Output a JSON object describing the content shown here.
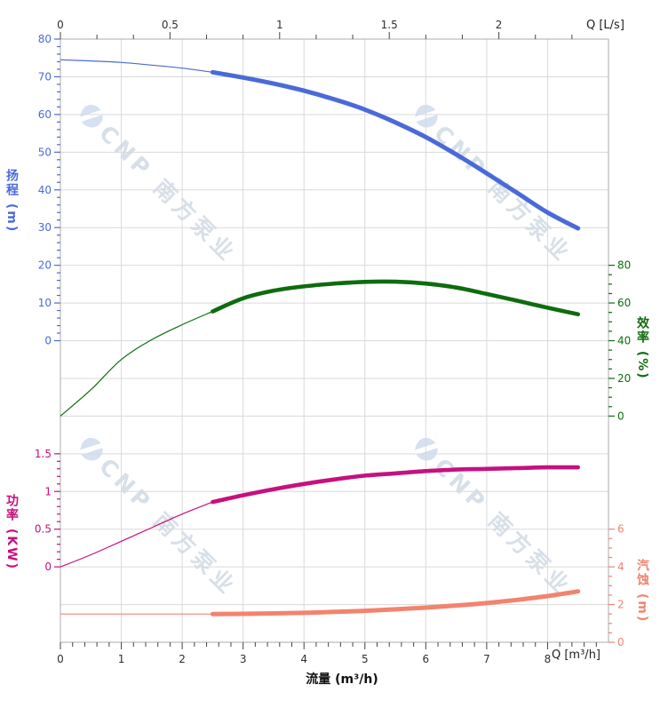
{
  "labels": {
    "flow_axis": "流量 (m³/h)",
    "top_unit": "Q [L/s]",
    "bottom_unit": "Q [m³/h]",
    "head_axis": "扬程 (m)",
    "efficiency_axis": "效率 (%)",
    "power_axis": "功率 (KW)",
    "npsh_axis": "汽蚀 (m)"
  },
  "watermark": {
    "text": "CNP 南方泵业"
  },
  "colors": {
    "head": "#4a6ad9",
    "efficiency": "#0e6c0e",
    "power": "#c6107f",
    "npsh": "#f2836e",
    "grid": "#d9d9d9",
    "border": "#ababab",
    "black_text": "#2f2f2f"
  },
  "chart_data": {
    "type": "line",
    "title": "",
    "x_label": "流量 (m³/h)",
    "x_unit_bottom": "Q [m³/h]",
    "x_unit_top": "Q [L/s]",
    "x_axis_bottom": {
      "ticks": [
        0,
        1,
        2,
        3,
        4,
        5,
        6,
        7,
        8
      ],
      "range": [
        0,
        9
      ],
      "minor_divisions": 5
    },
    "x_axis_top": {
      "ticks": [
        0,
        0.5,
        1,
        1.5,
        2
      ],
      "range": [
        0,
        2.5
      ],
      "minor_divisions": 3,
      "m3h_per_ls": 3.6
    },
    "x_m3h": [
      0,
      0.5,
      1,
      1.5,
      2,
      2.5,
      3,
      3.5,
      4,
      4.5,
      5,
      5.5,
      6,
      6.5,
      7,
      7.5,
      8,
      8.5
    ],
    "highlight_from_x": 2.5,
    "grid": true,
    "legend": "none",
    "series": [
      {
        "key": "head",
        "name": "扬程",
        "unit": "m",
        "color": "#4a6ad9",
        "axis_ticks": [
          0,
          10,
          20,
          30,
          40,
          50,
          60,
          70,
          80
        ],
        "minor_divisions": 5,
        "axis_side": "left",
        "values": [
          74.5,
          74.2,
          73.8,
          73.1,
          72.3,
          71.2,
          69.8,
          68.2,
          66.3,
          64.0,
          61.3,
          57.9,
          54.0,
          49.4,
          44.4,
          39.2,
          34.0,
          29.8
        ]
      },
      {
        "key": "efficiency",
        "name": "效率",
        "unit": "%",
        "color": "#0e6c0e",
        "axis_ticks": [
          0,
          20,
          40,
          60,
          80
        ],
        "minor_divisions": 4,
        "axis_side": "right",
        "values": [
          0,
          14,
          30,
          40.5,
          48.5,
          55.5,
          62.5,
          66.5,
          68.8,
          70.3,
          71.2,
          71.3,
          70.3,
          68.2,
          64.8,
          61.2,
          57.5,
          54.0
        ]
      },
      {
        "key": "power",
        "name": "功率",
        "unit": "KW",
        "color": "#c6107f",
        "axis_ticks": [
          0,
          0.5,
          1,
          1.5
        ],
        "minor_divisions": 5,
        "axis_side": "left",
        "values": [
          0,
          0.16,
          0.34,
          0.52,
          0.7,
          0.86,
          0.95,
          1.03,
          1.1,
          1.16,
          1.21,
          1.24,
          1.27,
          1.29,
          1.3,
          1.31,
          1.32,
          1.32
        ]
      },
      {
        "key": "npsh",
        "name": "汽蚀",
        "unit": "m",
        "color": "#f2836e",
        "axis_ticks": [
          0,
          2,
          4,
          6
        ],
        "minor_divisions": 4,
        "axis_side": "right",
        "values": [
          1.5,
          1.5,
          1.5,
          1.5,
          1.5,
          1.5,
          1.51,
          1.53,
          1.56,
          1.61,
          1.67,
          1.75,
          1.84,
          1.95,
          2.08,
          2.25,
          2.45,
          2.7
        ]
      }
    ]
  }
}
